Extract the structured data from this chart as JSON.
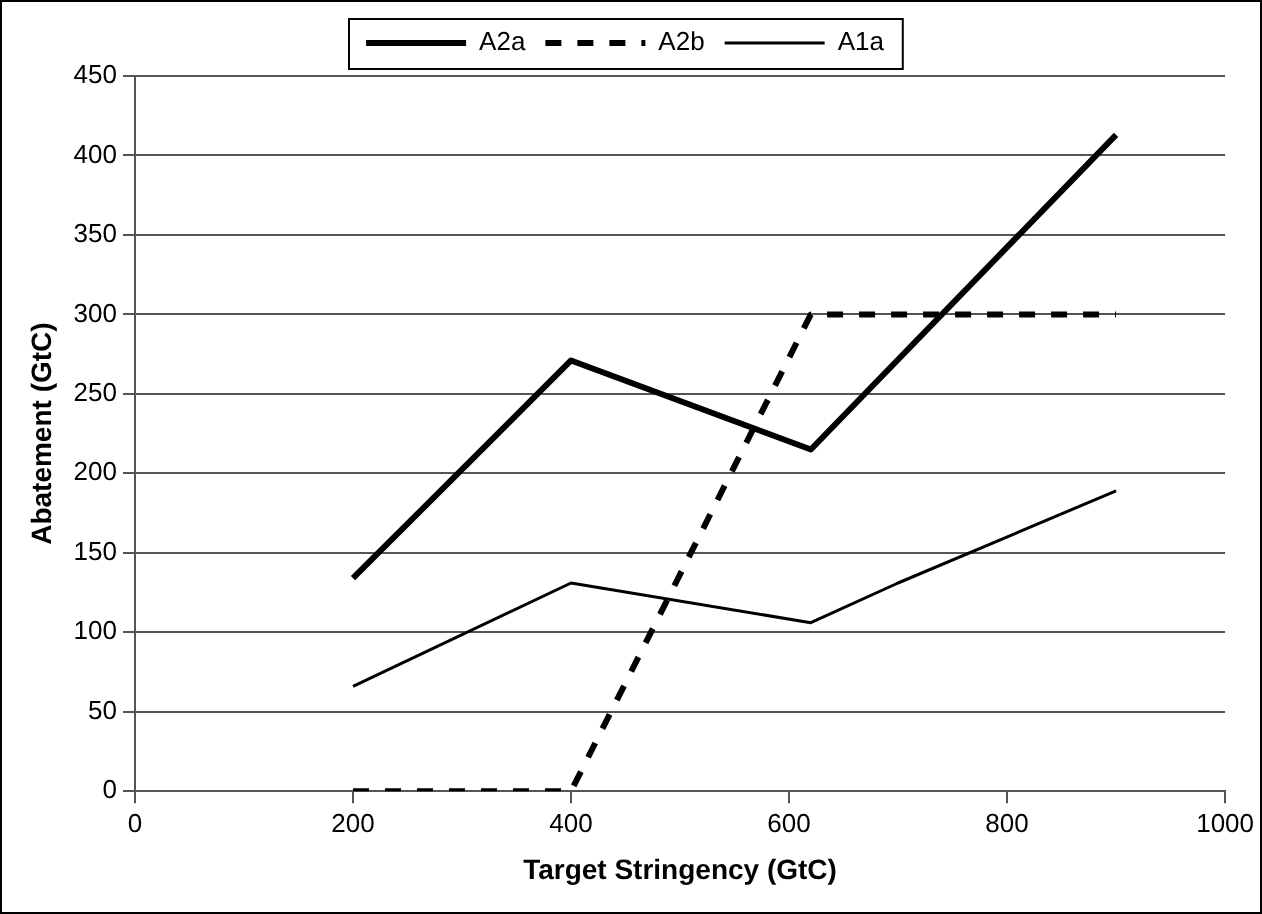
{
  "chart_data": {
    "type": "line",
    "xlabel": "Target Stringency (GtC)",
    "ylabel": "Abatement (GtC)",
    "xlim": [
      0,
      1000
    ],
    "xticks": [
      0,
      200,
      400,
      600,
      800,
      1000
    ],
    "ylim": [
      0,
      450
    ],
    "yticks": [
      0,
      50,
      100,
      150,
      200,
      250,
      300,
      350,
      400,
      450
    ],
    "grid": "y",
    "legend": "top",
    "marker": "none",
    "series": [
      {
        "name": "A2a",
        "color": "#000000",
        "line_style": "solid",
        "x": [
          200,
          400,
          620,
          900
        ],
        "values": [
          134,
          271,
          215,
          413
        ]
      },
      {
        "name": "A2b",
        "color": "#000000",
        "line_style": "dashed",
        "x": [
          200,
          400,
          620,
          900
        ],
        "values": [
          0,
          0,
          300,
          300
        ]
      },
      {
        "name": "A1a",
        "color": "#000000",
        "line_style": "solid",
        "x": [
          200,
          400,
          620,
          700,
          900
        ],
        "values": [
          66,
          131,
          106,
          131,
          189
        ]
      }
    ]
  }
}
